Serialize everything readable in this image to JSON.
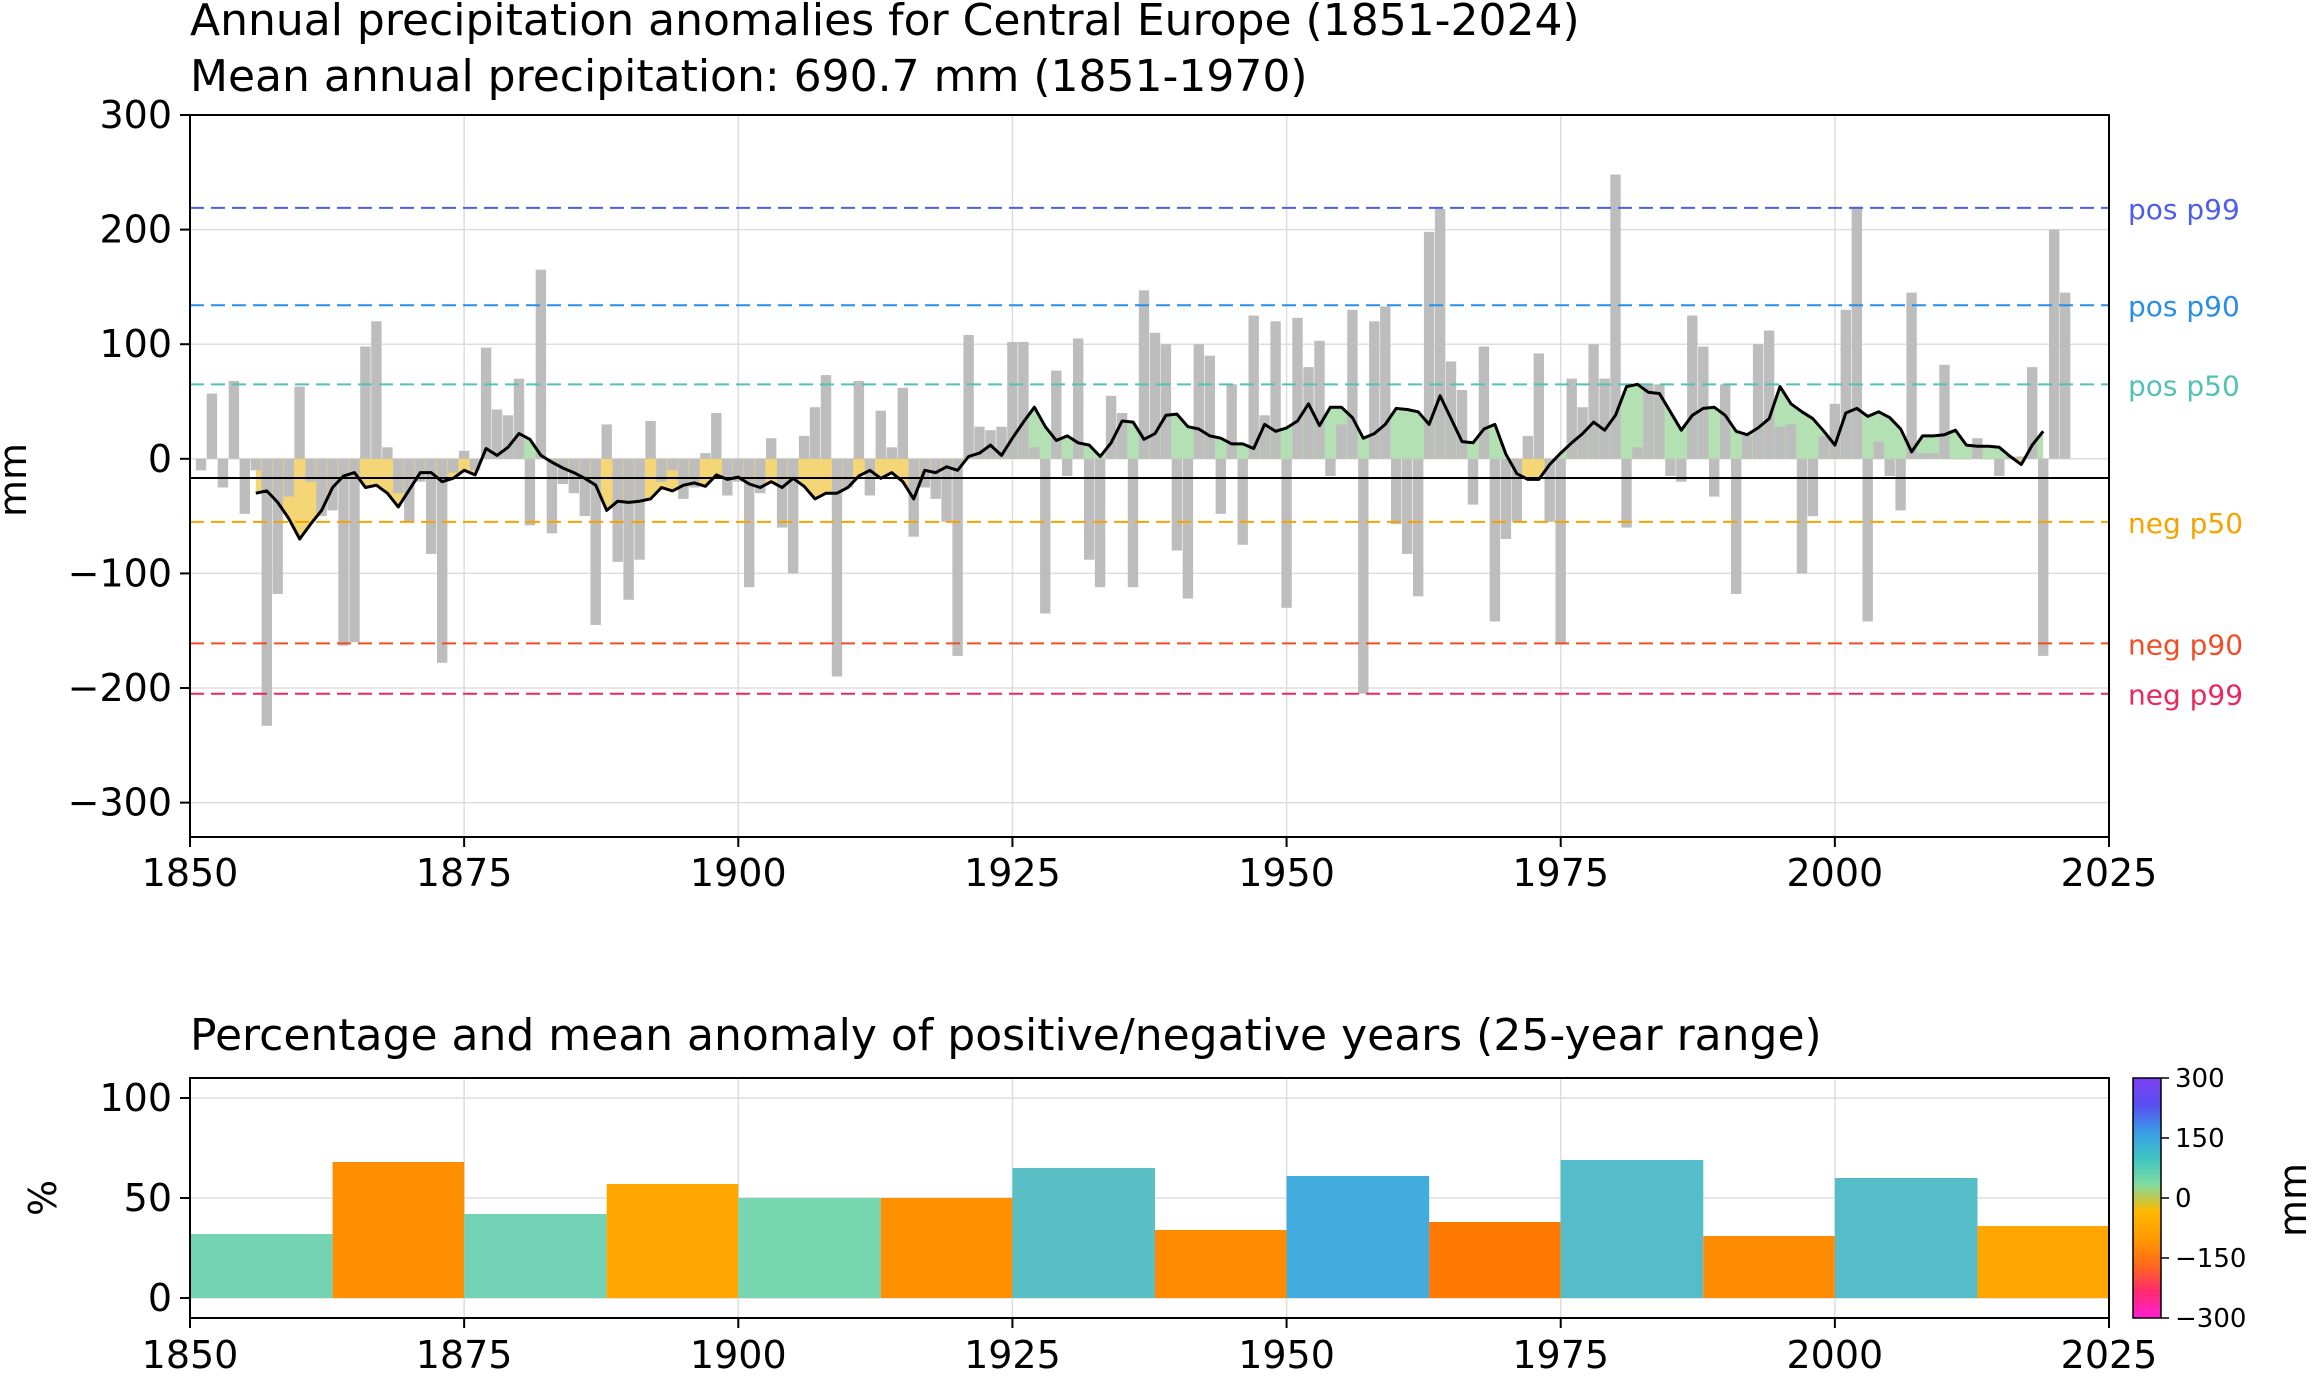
{
  "chart_data": [
    {
      "type": "bar",
      "title": "Annual precipitation anomalies for Central Europe (1851-2024)",
      "subtitle": "Mean annual precipitation: 690.7 mm (1851-1970)",
      "xlabel": "",
      "ylabel": "mm",
      "xlim": [
        1850,
        2025
      ],
      "ylim": [
        -330,
        300
      ],
      "xticks": [
        "1850",
        "1875",
        "1900",
        "1925",
        "1950",
        "1975",
        "2000",
        "2025"
      ],
      "yticks": [
        "300",
        "200",
        "100",
        "0",
        "−100",
        "−200",
        "−300"
      ],
      "ytick_values": [
        300,
        200,
        100,
        0,
        -100,
        -200,
        -300
      ],
      "grid": true,
      "bar_color": "#bdbdbd",
      "years_start": 1851,
      "anomalies": [
        -10,
        57,
        -25,
        68,
        -48,
        -10,
        -233,
        -118,
        -33,
        63,
        -20,
        -50,
        -45,
        -163,
        -160,
        98,
        120,
        10,
        -30,
        -55,
        -20,
        -83,
        -178,
        -12,
        7,
        -10,
        97,
        43,
        38,
        70,
        -58,
        165,
        -65,
        -22,
        -30,
        -50,
        -145,
        30,
        -90,
        -123,
        -88,
        33,
        -20,
        -10,
        -35,
        -25,
        5,
        40,
        -32,
        -20,
        -112,
        -30,
        18,
        -60,
        -100,
        20,
        45,
        73,
        -190,
        -25,
        68,
        -32,
        42,
        10,
        62,
        -68,
        -25,
        -35,
        -55,
        -172,
        108,
        28,
        25,
        28,
        102,
        102,
        10,
        -135,
        77,
        -15,
        105,
        -88,
        -112,
        55,
        40,
        -112,
        147,
        110,
        100,
        -80,
        -122,
        100,
        90,
        -48,
        65,
        -75,
        125,
        38,
        120,
        -130,
        123,
        80,
        103,
        -15,
        30,
        130,
        -205,
        120,
        133,
        -57,
        -83,
        -120,
        198,
        218,
        85,
        60,
        -40,
        98,
        -142,
        -70,
        -55,
        20,
        92,
        -55,
        -162,
        70,
        45,
        100,
        70,
        248,
        -60,
        10,
        65,
        65,
        -15,
        -20,
        125,
        98,
        -33,
        65,
        -118,
        20,
        100,
        112,
        28,
        30,
        -100,
        -50,
        20,
        48,
        130,
        220,
        -142,
        15,
        -15,
        -45,
        145,
        5,
        5,
        82,
        0,
        0,
        18,
        0,
        -15,
        2,
        2,
        80,
        -172,
        200,
        145
      ],
      "smoothed_line_color": "#000000",
      "smoothed_start": 1856,
      "smoothed_values": [
        -30,
        -28,
        -38,
        -52,
        -70,
        -57,
        -45,
        -25,
        -15,
        -12,
        -25,
        -23,
        -30,
        -42,
        -27,
        -12,
        -12,
        -20,
        -17,
        -10,
        -14,
        9,
        3,
        10,
        22,
        17,
        3,
        -3,
        -8,
        -12,
        -17,
        -23,
        -45,
        -37,
        -38,
        -37,
        -35,
        -25,
        -28,
        -23,
        -21,
        -24,
        -14,
        -18,
        -16,
        -22,
        -25,
        -20,
        -25,
        -17,
        -24,
        -35,
        -30,
        -30,
        -25,
        -15,
        -10,
        -17,
        -12,
        -20,
        -35,
        -10,
        -12,
        -7,
        -10,
        2,
        5,
        12,
        3,
        18,
        32,
        45,
        28,
        16,
        20,
        14,
        12,
        2,
        14,
        33,
        32,
        17,
        22,
        38,
        39,
        28,
        26,
        20,
        18,
        13,
        13,
        9,
        30,
        24,
        27,
        33,
        48,
        29,
        45,
        45,
        36,
        18,
        22,
        30,
        44,
        43,
        41,
        30,
        55,
        35,
        15,
        14,
        26,
        30,
        4,
        -13,
        -18,
        -18,
        -5,
        5,
        14,
        22,
        32,
        25,
        38,
        63,
        65,
        58,
        57,
        41,
        25,
        38,
        44,
        45,
        38,
        24,
        21,
        27,
        35,
        63,
        48,
        41,
        35,
        24,
        12,
        40,
        44,
        37,
        41,
        36,
        26,
        6,
        20,
        20,
        21,
        25,
        12,
        11,
        11,
        10,
        2,
        -5,
        12,
        24
      ],
      "fill_positive_color": "#a6dca6",
      "fill_negative_color": "#f3cf5e",
      "thresholds": [
        {
          "label": "pos p99",
          "value": 219,
          "color": "#4f5ee8"
        },
        {
          "label": "pos p90",
          "value": 134,
          "color": "#2a8ee6"
        },
        {
          "label": "pos p50",
          "value": 65,
          "color": "#52c2b3"
        },
        {
          "label": "neg p50",
          "value": -55,
          "color": "#f5a300"
        },
        {
          "label": "neg p90",
          "value": -161,
          "color": "#f04e24"
        },
        {
          "label": "neg p99",
          "value": -205,
          "color": "#e8295e"
        }
      ]
    },
    {
      "type": "bar",
      "title": "Percentage and mean anomaly of positive/negative years (25-year range)",
      "xlabel": "",
      "ylabel": "%",
      "xlim": [
        1850,
        2025
      ],
      "ylim": [
        -10,
        110
      ],
      "xticks": [
        "1850",
        "1875",
        "1900",
        "1925",
        "1950",
        "1975",
        "2000",
        "2025"
      ],
      "yticks": [
        "100",
        "50",
        "0"
      ],
      "ytick_values": [
        100,
        50,
        0
      ],
      "grid": true,
      "bars": [
        {
          "start": 1850,
          "end": 1863,
          "value": 32,
          "color": "#74d3b3"
        },
        {
          "start": 1863,
          "end": 1875,
          "value": 68,
          "color": "#fe8f00"
        },
        {
          "start": 1875,
          "end": 1888,
          "value": 42,
          "color": "#73d2b4"
        },
        {
          "start": 1888,
          "end": 1900,
          "value": 57,
          "color": "#ffa600"
        },
        {
          "start": 1900,
          "end": 1913,
          "value": 50,
          "color": "#76d6b0"
        },
        {
          "start": 1913,
          "end": 1925,
          "value": 50,
          "color": "#ff9100"
        },
        {
          "start": 1925,
          "end": 1938,
          "value": 65,
          "color": "#5bbfc6"
        },
        {
          "start": 1938,
          "end": 1950,
          "value": 34,
          "color": "#ff8a00"
        },
        {
          "start": 1950,
          "end": 1963,
          "value": 61,
          "color": "#41acdd"
        },
        {
          "start": 1963,
          "end": 1975,
          "value": 38,
          "color": "#ff7a00"
        },
        {
          "start": 1975,
          "end": 1988,
          "value": 69,
          "color": "#55bdca"
        },
        {
          "start": 1988,
          "end": 2000,
          "value": 31,
          "color": "#ff8c00"
        },
        {
          "start": 2000,
          "end": 2013,
          "value": 60,
          "color": "#55bdca"
        },
        {
          "start": 2013,
          "end": 2025,
          "value": 36,
          "color": "#ffa600"
        }
      ],
      "colorbar": {
        "label": "mm",
        "ticks": [
          "300",
          "150",
          "0",
          "−150",
          "−300"
        ],
        "tick_values": [
          300,
          150,
          0,
          -150,
          -300
        ],
        "range": [
          -300,
          300
        ],
        "colors": [
          "#ff1fd6",
          "#ff2a6e",
          "#ff6a1a",
          "#ff9a00",
          "#ffb800",
          "#7fdba0",
          "#3fc4c4",
          "#3a9ae8",
          "#5a4ef0",
          "#7b3ff2"
        ]
      }
    }
  ]
}
